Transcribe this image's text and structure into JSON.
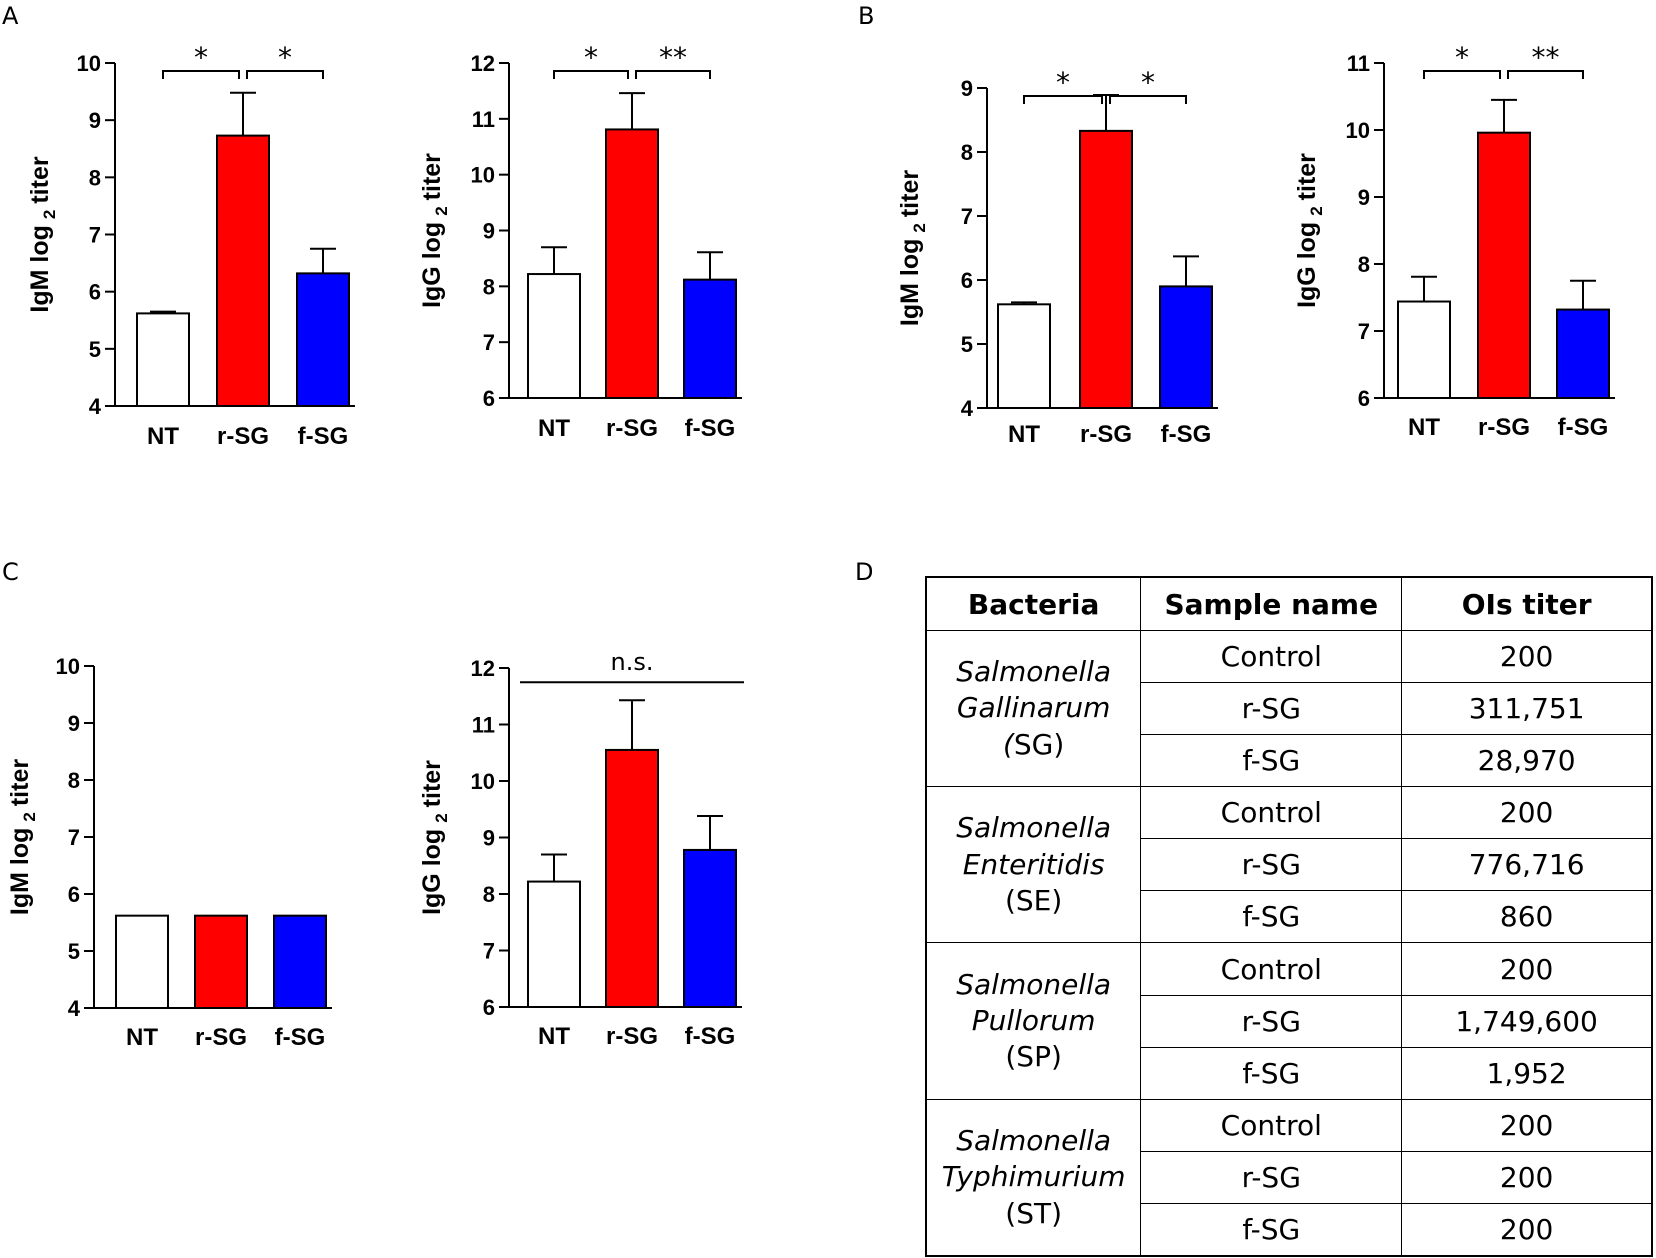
{
  "panel_labels": [
    "A",
    "B",
    "C",
    "D"
  ],
  "chart_data": [
    {
      "panel": "A",
      "type": "bar",
      "categories": [
        "NT",
        "r-SG",
        "f-SG"
      ],
      "values": [
        5.62,
        8.73,
        6.32
      ],
      "errors": [
        0.03,
        0.75,
        0.43
      ],
      "colors": [
        "#ffffff",
        "#ff0000",
        "#0000ff"
      ],
      "ylabel": "IgM log",
      "ylabel_sub": "2",
      "ylabel_tail": "titer",
      "ylim": [
        4,
        10
      ],
      "yticks": [
        4,
        5,
        6,
        7,
        8,
        9,
        10
      ],
      "significance": [
        {
          "from": 0,
          "to": 1,
          "label": "*"
        },
        {
          "from": 1,
          "to": 2,
          "label": "*"
        }
      ]
    },
    {
      "panel": "A",
      "type": "bar",
      "categories": [
        "NT",
        "r-SG",
        "f-SG"
      ],
      "values": [
        8.22,
        10.81,
        8.12
      ],
      "errors": [
        0.48,
        0.65,
        0.49
      ],
      "colors": [
        "#ffffff",
        "#ff0000",
        "#0000ff"
      ],
      "ylabel": "IgG log",
      "ylabel_sub": "2",
      "ylabel_tail": "titer",
      "ylim": [
        6,
        12
      ],
      "yticks": [
        6,
        7,
        8,
        9,
        10,
        11,
        12
      ],
      "significance": [
        {
          "from": 0,
          "to": 1,
          "label": "*"
        },
        {
          "from": 1,
          "to": 2,
          "label": "**"
        }
      ]
    },
    {
      "panel": "B",
      "type": "bar",
      "categories": [
        "NT",
        "r-SG",
        "f-SG"
      ],
      "values": [
        5.62,
        8.33,
        5.9
      ],
      "errors": [
        0.03,
        0.56,
        0.47
      ],
      "colors": [
        "#ffffff",
        "#ff0000",
        "#0000ff"
      ],
      "ylabel": "IgM log",
      "ylabel_sub": "2",
      "ylabel_tail": "titer",
      "ylim": [
        4,
        9
      ],
      "yticks": [
        4,
        5,
        6,
        7,
        8,
        9
      ],
      "significance": [
        {
          "from": 0,
          "to": 1,
          "label": "*"
        },
        {
          "from": 1,
          "to": 2,
          "label": "*"
        }
      ]
    },
    {
      "panel": "B",
      "type": "bar",
      "categories": [
        "NT",
        "r-SG",
        "f-SG"
      ],
      "values": [
        7.44,
        9.96,
        7.32
      ],
      "errors": [
        0.37,
        0.49,
        0.43
      ],
      "colors": [
        "#ffffff",
        "#ff0000",
        "#0000ff"
      ],
      "ylabel": "IgG log",
      "ylabel_sub": "2",
      "ylabel_tail": "titer",
      "ylim": [
        6,
        11
      ],
      "yticks": [
        6,
        7,
        8,
        9,
        10,
        11
      ],
      "significance": [
        {
          "from": 0,
          "to": 1,
          "label": "*"
        },
        {
          "from": 1,
          "to": 2,
          "label": "**"
        }
      ]
    },
    {
      "panel": "C",
      "type": "bar",
      "categories": [
        "NT",
        "r-SG",
        "f-SG"
      ],
      "values": [
        5.62,
        5.62,
        5.62
      ],
      "errors": [
        0,
        0,
        0
      ],
      "colors": [
        "#ffffff",
        "#ff0000",
        "#0000ff"
      ],
      "ylabel": "IgM log",
      "ylabel_sub": "2",
      "ylabel_tail": "titer",
      "ylim": [
        4,
        10
      ],
      "yticks": [
        4,
        5,
        6,
        7,
        8,
        9,
        10
      ],
      "significance": []
    },
    {
      "panel": "C",
      "type": "bar",
      "categories": [
        "NT",
        "r-SG",
        "f-SG"
      ],
      "values": [
        8.22,
        10.55,
        8.78
      ],
      "errors": [
        0.48,
        0.88,
        0.6
      ],
      "colors": [
        "#ffffff",
        "#ff0000",
        "#0000ff"
      ],
      "ylabel": "IgG log",
      "ylabel_sub": "2",
      "ylabel_tail": "titer",
      "ylim": [
        6,
        12
      ],
      "yticks": [
        6,
        7,
        8,
        9,
        10,
        11,
        12
      ],
      "significance": [
        {
          "from": 0,
          "to": 2,
          "label": "n.s.",
          "style": "line"
        }
      ]
    }
  ],
  "table": {
    "headers": [
      "Bacteria",
      "Sample name",
      "OIs titer"
    ],
    "groups": [
      {
        "name_line1": "Salmonella",
        "name_line2": "Gallinarum",
        "abbr": "(SG)",
        "italic_paren": true,
        "rows": [
          {
            "sample": "Control",
            "titer": "200"
          },
          {
            "sample": "r-SG",
            "titer": "311,751"
          },
          {
            "sample": "f-SG",
            "titer": "28,970"
          }
        ]
      },
      {
        "name_line1": "Salmonella",
        "name_line2": "Enteritidis",
        "abbr": "(SE)",
        "italic_paren": false,
        "rows": [
          {
            "sample": "Control",
            "titer": "200"
          },
          {
            "sample": "r-SG",
            "titer": "776,716"
          },
          {
            "sample": "f-SG",
            "titer": "860"
          }
        ]
      },
      {
        "name_line1": "Salmonella",
        "name_line2": "Pullorum",
        "abbr": "(SP)",
        "italic_paren": false,
        "rows": [
          {
            "sample": "Control",
            "titer": "200"
          },
          {
            "sample": "r-SG",
            "titer": "1,749,600"
          },
          {
            "sample": "f-SG",
            "titer": "1,952"
          }
        ]
      },
      {
        "name_line1": "Salmonella",
        "name_line2": "Typhimurium",
        "abbr": "(ST)",
        "italic_paren": false,
        "rows": [
          {
            "sample": "Control",
            "titer": "200"
          },
          {
            "sample": "r-SG",
            "titer": "200"
          },
          {
            "sample": "f-SG",
            "titer": "200"
          }
        ]
      }
    ]
  }
}
